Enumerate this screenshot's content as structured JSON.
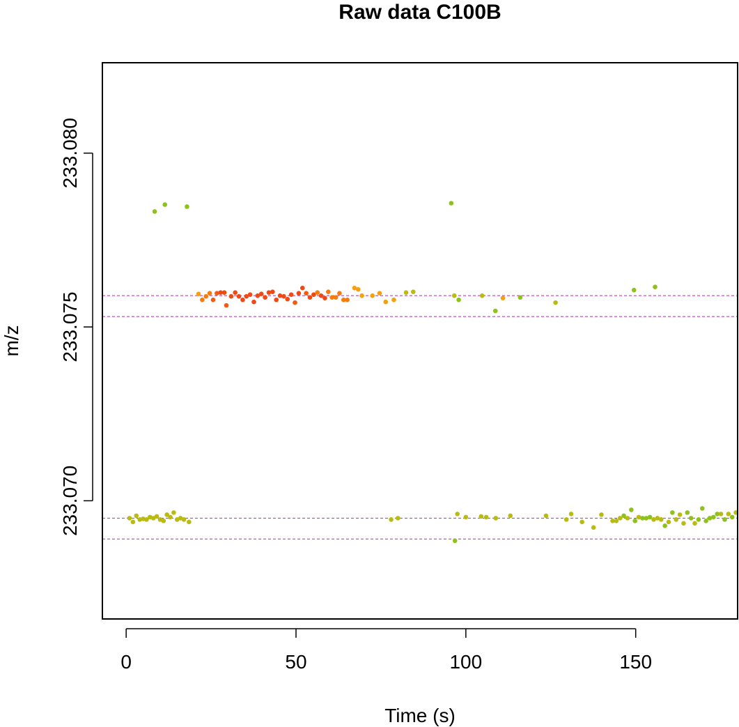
{
  "chart_data": {
    "type": "scatter",
    "title": "Raw data C100B",
    "xlabel": "Time (s)",
    "ylabel": "m/z",
    "xlim": [
      -7,
      180
    ],
    "ylim": [
      233.0666,
      233.0826
    ],
    "x_ticks": [
      0,
      50,
      100,
      150
    ],
    "x_tick_labels": [
      "0",
      "50",
      "100",
      "150"
    ],
    "y_ticks": [
      233.07,
      233.075,
      233.08
    ],
    "y_tick_labels": [
      "233.070",
      "233.075",
      "233.080"
    ],
    "grid": false,
    "legend": "none",
    "reference_lines": [
      233.0759,
      233.0753,
      233.0695,
      233.0689
    ],
    "reference_line_color": "#b02ab0",
    "points": [
      {
        "x": 8.4,
        "y": 233.07832,
        "color": "#8ec21a"
      },
      {
        "x": 11.4,
        "y": 233.07852,
        "color": "#8ec21a"
      },
      {
        "x": 17.9,
        "y": 233.07846,
        "color": "#8ec21a"
      },
      {
        "x": 95.7,
        "y": 233.07856,
        "color": "#8ec21a"
      },
      {
        "x": 21.3,
        "y": 233.07595,
        "color": "#f5a00c"
      },
      {
        "x": 22.4,
        "y": 233.07578,
        "color": "#f47d0c"
      },
      {
        "x": 23.5,
        "y": 233.07588,
        "color": "#f47d0c"
      },
      {
        "x": 24.6,
        "y": 233.07597,
        "color": "#f47d0c"
      },
      {
        "x": 25.6,
        "y": 233.07578,
        "color": "#f05c12"
      },
      {
        "x": 26.7,
        "y": 233.07597,
        "color": "#f05c12"
      },
      {
        "x": 27.8,
        "y": 233.07599,
        "color": "#ef4a15"
      },
      {
        "x": 28.9,
        "y": 233.07599,
        "color": "#ef4a15"
      },
      {
        "x": 29.5,
        "y": 233.07562,
        "color": "#f05c12"
      },
      {
        "x": 30.9,
        "y": 233.07588,
        "color": "#ef4a15"
      },
      {
        "x": 32.1,
        "y": 233.07599,
        "color": "#ef4a15"
      },
      {
        "x": 33.2,
        "y": 233.07588,
        "color": "#ef4a15"
      },
      {
        "x": 34.3,
        "y": 233.07578,
        "color": "#ef4a15"
      },
      {
        "x": 35.4,
        "y": 233.07588,
        "color": "#ef4a15"
      },
      {
        "x": 36.5,
        "y": 233.07593,
        "color": "#ef4a15"
      },
      {
        "x": 37.6,
        "y": 233.07572,
        "color": "#ef4a15"
      },
      {
        "x": 38.7,
        "y": 233.0759,
        "color": "#ef4a15"
      },
      {
        "x": 39.8,
        "y": 233.07595,
        "color": "#ef4a15"
      },
      {
        "x": 40.9,
        "y": 233.07585,
        "color": "#ef4a15"
      },
      {
        "x": 42.0,
        "y": 233.07599,
        "color": "#ef4a15"
      },
      {
        "x": 43.1,
        "y": 233.07601,
        "color": "#ef4a15"
      },
      {
        "x": 44.2,
        "y": 233.07578,
        "color": "#ef4a15"
      },
      {
        "x": 45.3,
        "y": 233.0759,
        "color": "#ef4a15"
      },
      {
        "x": 46.4,
        "y": 233.07588,
        "color": "#ef4a15"
      },
      {
        "x": 47.5,
        "y": 233.0758,
        "color": "#ef4a15"
      },
      {
        "x": 48.6,
        "y": 233.07593,
        "color": "#ef4a15"
      },
      {
        "x": 49.7,
        "y": 233.0757,
        "color": "#f05c12"
      },
      {
        "x": 50.8,
        "y": 233.07597,
        "color": "#ef4a15"
      },
      {
        "x": 51.9,
        "y": 233.07612,
        "color": "#ef4a15"
      },
      {
        "x": 53.0,
        "y": 233.07597,
        "color": "#f05c12"
      },
      {
        "x": 54.1,
        "y": 233.07585,
        "color": "#ef4a15"
      },
      {
        "x": 55.2,
        "y": 233.07593,
        "color": "#ef4a15"
      },
      {
        "x": 56.3,
        "y": 233.07599,
        "color": "#f47d0c"
      },
      {
        "x": 57.4,
        "y": 233.0759,
        "color": "#ef4a15"
      },
      {
        "x": 58.5,
        "y": 233.07583,
        "color": "#ef4a15"
      },
      {
        "x": 59.5,
        "y": 233.07601,
        "color": "#f47d0c"
      },
      {
        "x": 60.6,
        "y": 233.07585,
        "color": "#f47d0c"
      },
      {
        "x": 61.7,
        "y": 233.07585,
        "color": "#f47d0c"
      },
      {
        "x": 62.8,
        "y": 233.07597,
        "color": "#f47d0c"
      },
      {
        "x": 64.0,
        "y": 233.07578,
        "color": "#f47d0c"
      },
      {
        "x": 65.1,
        "y": 233.07578,
        "color": "#f47d0c"
      },
      {
        "x": 67.2,
        "y": 233.07612,
        "color": "#f5a00c"
      },
      {
        "x": 68.3,
        "y": 233.07608,
        "color": "#f5a00c"
      },
      {
        "x": 69.4,
        "y": 233.0759,
        "color": "#f5a00c"
      },
      {
        "x": 72.5,
        "y": 233.0759,
        "color": "#f5a00c"
      },
      {
        "x": 74.6,
        "y": 233.07597,
        "color": "#f5a00c"
      },
      {
        "x": 76.4,
        "y": 233.07572,
        "color": "#f5a00c"
      },
      {
        "x": 78.8,
        "y": 233.07578,
        "color": "#f5a00c"
      },
      {
        "x": 82.4,
        "y": 233.07599,
        "color": "#b9bb10"
      },
      {
        "x": 84.5,
        "y": 233.07601,
        "color": "#b9bb10"
      },
      {
        "x": 96.6,
        "y": 233.0759,
        "color": "#b9bb10"
      },
      {
        "x": 97.9,
        "y": 233.07578,
        "color": "#8ec21a"
      },
      {
        "x": 104.8,
        "y": 233.0759,
        "color": "#b9bb10"
      },
      {
        "x": 108.7,
        "y": 233.07546,
        "color": "#8ec21a"
      },
      {
        "x": 110.9,
        "y": 233.07583,
        "color": "#f5a00c"
      },
      {
        "x": 116.0,
        "y": 233.07585,
        "color": "#8ec21a"
      },
      {
        "x": 126.4,
        "y": 233.0757,
        "color": "#b9bb10"
      },
      {
        "x": 149.5,
        "y": 233.07606,
        "color": "#8ec21a"
      },
      {
        "x": 155.7,
        "y": 233.07615,
        "color": "#8ec21a"
      },
      {
        "x": 1.0,
        "y": 233.0695,
        "color": "#b9bb10"
      },
      {
        "x": 2.0,
        "y": 233.06939,
        "color": "#b9bb10"
      },
      {
        "x": 3.0,
        "y": 233.06957,
        "color": "#b9bb10"
      },
      {
        "x": 4.0,
        "y": 233.06946,
        "color": "#b9bb10"
      },
      {
        "x": 5.0,
        "y": 233.06948,
        "color": "#b9bb10"
      },
      {
        "x": 6.0,
        "y": 233.06946,
        "color": "#b9bb10"
      },
      {
        "x": 7.0,
        "y": 233.06953,
        "color": "#b9bb10"
      },
      {
        "x": 8.0,
        "y": 233.0695,
        "color": "#b9bb10"
      },
      {
        "x": 9.0,
        "y": 233.06955,
        "color": "#b9bb10"
      },
      {
        "x": 10.0,
        "y": 233.06946,
        "color": "#b9bb10"
      },
      {
        "x": 11.0,
        "y": 233.06942,
        "color": "#b9bb10"
      },
      {
        "x": 12.0,
        "y": 233.0696,
        "color": "#b9bb10"
      },
      {
        "x": 13.0,
        "y": 233.06953,
        "color": "#b9bb10"
      },
      {
        "x": 14.0,
        "y": 233.06966,
        "color": "#b9bb10"
      },
      {
        "x": 15.0,
        "y": 233.06946,
        "color": "#b9bb10"
      },
      {
        "x": 16.0,
        "y": 233.0695,
        "color": "#b9bb10"
      },
      {
        "x": 17.0,
        "y": 233.06946,
        "color": "#b9bb10"
      },
      {
        "x": 18.5,
        "y": 233.06939,
        "color": "#b9bb10"
      },
      {
        "x": 78.0,
        "y": 233.06946,
        "color": "#b9bb10"
      },
      {
        "x": 80.0,
        "y": 233.0695,
        "color": "#b9bb10"
      },
      {
        "x": 97.5,
        "y": 233.06962,
        "color": "#b9bb10"
      },
      {
        "x": 100.0,
        "y": 233.06953,
        "color": "#b9bb10"
      },
      {
        "x": 104.5,
        "y": 233.06955,
        "color": "#b9bb10"
      },
      {
        "x": 106.0,
        "y": 233.06953,
        "color": "#b9bb10"
      },
      {
        "x": 108.8,
        "y": 233.0695,
        "color": "#b9bb10"
      },
      {
        "x": 113.1,
        "y": 233.06957,
        "color": "#b9bb10"
      },
      {
        "x": 123.6,
        "y": 233.06957,
        "color": "#b9bb10"
      },
      {
        "x": 129.6,
        "y": 233.06946,
        "color": "#b9bb10"
      },
      {
        "x": 131.0,
        "y": 233.06962,
        "color": "#b9bb10"
      },
      {
        "x": 134.2,
        "y": 233.06939,
        "color": "#b9bb10"
      },
      {
        "x": 137.6,
        "y": 233.06923,
        "color": "#b9bb10"
      },
      {
        "x": 139.9,
        "y": 233.0696,
        "color": "#b9bb10"
      },
      {
        "x": 143.2,
        "y": 233.06942,
        "color": "#b9bb10"
      },
      {
        "x": 144.3,
        "y": 233.06942,
        "color": "#b9bb10"
      },
      {
        "x": 145.4,
        "y": 233.0695,
        "color": "#b9bb10"
      },
      {
        "x": 146.5,
        "y": 233.06957,
        "color": "#8ec21a"
      },
      {
        "x": 147.6,
        "y": 233.0695,
        "color": "#b9bb10"
      },
      {
        "x": 148.7,
        "y": 233.06974,
        "color": "#8ec21a"
      },
      {
        "x": 149.8,
        "y": 233.06942,
        "color": "#8ec21a"
      },
      {
        "x": 150.9,
        "y": 233.06953,
        "color": "#b9bb10"
      },
      {
        "x": 152.0,
        "y": 233.0695,
        "color": "#8ec21a"
      },
      {
        "x": 153.1,
        "y": 233.0695,
        "color": "#8ec21a"
      },
      {
        "x": 154.2,
        "y": 233.06953,
        "color": "#8ec21a"
      },
      {
        "x": 155.3,
        "y": 233.06946,
        "color": "#b9bb10"
      },
      {
        "x": 156.4,
        "y": 233.0695,
        "color": "#b9bb10"
      },
      {
        "x": 157.5,
        "y": 233.06946,
        "color": "#b9bb10"
      },
      {
        "x": 158.6,
        "y": 233.06928,
        "color": "#8ec21a"
      },
      {
        "x": 159.7,
        "y": 233.06939,
        "color": "#b9bb10"
      },
      {
        "x": 160.8,
        "y": 233.06966,
        "color": "#8ec21a"
      },
      {
        "x": 161.9,
        "y": 233.06946,
        "color": "#b9bb10"
      },
      {
        "x": 163.0,
        "y": 233.0696,
        "color": "#b9bb10"
      },
      {
        "x": 164.1,
        "y": 233.06935,
        "color": "#b9bb10"
      },
      {
        "x": 165.2,
        "y": 233.06966,
        "color": "#8ec21a"
      },
      {
        "x": 166.3,
        "y": 233.0695,
        "color": "#8ec21a"
      },
      {
        "x": 167.4,
        "y": 233.06935,
        "color": "#b9bb10"
      },
      {
        "x": 168.5,
        "y": 233.06946,
        "color": "#8ec21a"
      },
      {
        "x": 169.6,
        "y": 233.06978,
        "color": "#8ec21a"
      },
      {
        "x": 170.7,
        "y": 233.06942,
        "color": "#8ec21a"
      },
      {
        "x": 171.8,
        "y": 233.0695,
        "color": "#8ec21a"
      },
      {
        "x": 172.9,
        "y": 233.06953,
        "color": "#8ec21a"
      },
      {
        "x": 174.0,
        "y": 233.06962,
        "color": "#8ec21a"
      },
      {
        "x": 175.1,
        "y": 233.06962,
        "color": "#b9bb10"
      },
      {
        "x": 176.2,
        "y": 233.06946,
        "color": "#8ec21a"
      },
      {
        "x": 177.3,
        "y": 233.06962,
        "color": "#b9bb10"
      },
      {
        "x": 178.4,
        "y": 233.06953,
        "color": "#8ec21a"
      },
      {
        "x": 179.5,
        "y": 233.06966,
        "color": "#b9bb10"
      },
      {
        "x": 96.8,
        "y": 233.06885,
        "color": "#8ec21a"
      }
    ]
  }
}
